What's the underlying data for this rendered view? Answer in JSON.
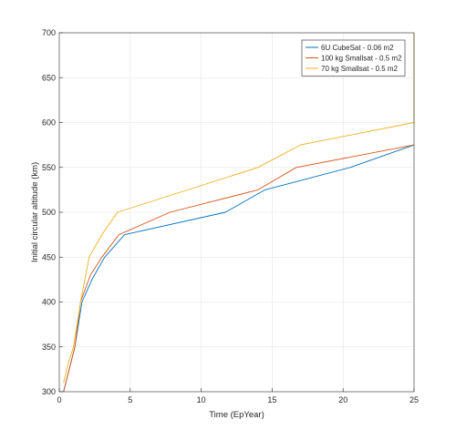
{
  "chart_data": {
    "type": "line",
    "xlabel": "Time (EpYear)",
    "ylabel": "Initial circular altitude (km)",
    "xlim": [
      0,
      25
    ],
    "ylim": [
      300,
      700
    ],
    "xticks": [
      0,
      5,
      10,
      15,
      20,
      25
    ],
    "yticks": [
      300,
      350,
      400,
      450,
      500,
      550,
      600,
      650,
      700
    ],
    "grid": true,
    "legend_position": "top-right",
    "series": [
      {
        "name": "6U CubeSat - 0.06 m2",
        "color": "#0072BD",
        "x": [
          0.3,
          0.7,
          1.1,
          1.6,
          2.3,
          3.2,
          4.6,
          11.7,
          14.5,
          20.5,
          25
        ],
        "y": [
          300,
          325,
          350,
          400,
          425,
          450,
          475,
          500,
          525,
          550,
          575
        ]
      },
      {
        "name": "100 kg Smallsat - 0.5 m2",
        "color": "#D95319",
        "x": [
          0.3,
          0.7,
          1.1,
          1.5,
          2.2,
          3.0,
          4.2,
          7.8,
          14.0,
          16.7,
          25
        ],
        "y": [
          300,
          325,
          350,
          400,
          430,
          450,
          475,
          500,
          525,
          550,
          575
        ]
      },
      {
        "name": "70 kg Smallsat - 0.5 m2",
        "color": "#EDB120",
        "x": [
          0.3,
          0.6,
          1.0,
          1.5,
          2.1,
          3.0,
          4.1,
          14.0,
          17.0,
          25,
          25
        ],
        "y": [
          310,
          330,
          350,
          400,
          450,
          475,
          500,
          550,
          575,
          600,
          700
        ]
      }
    ]
  }
}
